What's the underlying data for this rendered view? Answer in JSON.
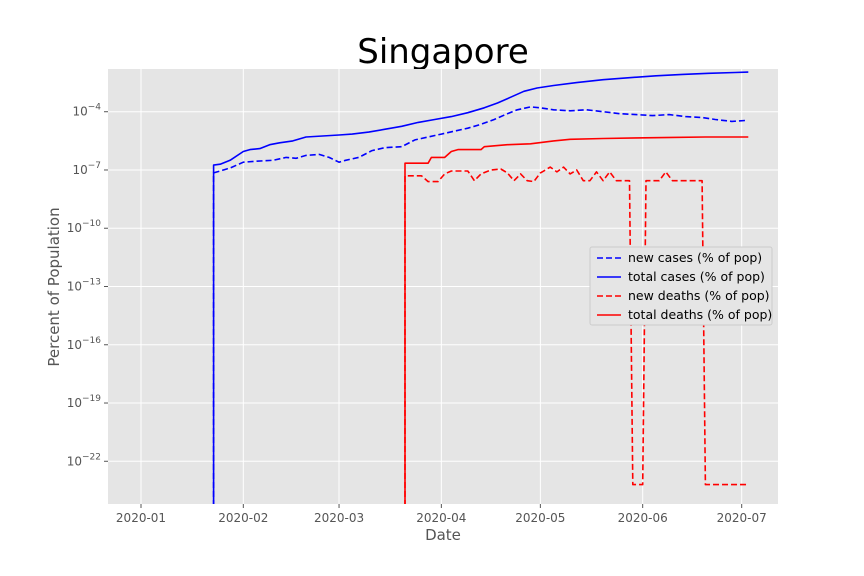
{
  "chart_data": {
    "type": "line",
    "title": "Singapore",
    "xlabel": "Date",
    "ylabel": "Percent of Population",
    "yscale": "log",
    "grid": true,
    "legend_position": "center-right",
    "colors": {
      "cases": "#0000ff",
      "deaths": "#ff0000",
      "background": "#e5e5e5",
      "grid": "#ffffff"
    },
    "x_ticks": [
      "2020-01",
      "2020-02",
      "2020-03",
      "2020-04",
      "2020-05",
      "2020-06",
      "2020-07"
    ],
    "y_ticks": [
      "10^-4",
      "10^-7",
      "10^-10",
      "10^-13",
      "10^-16",
      "10^-19",
      "10^-22"
    ],
    "xlim": [
      "2019-12-22",
      "2020-07-12"
    ],
    "ylim_exp": [
      -24.2,
      -1.8
    ],
    "series": [
      {
        "name": "new cases (% of pop)",
        "color": "#0000ff",
        "style": "dashed",
        "points": [
          [
            "2020-01-23",
            -30
          ],
          [
            "2020-01-23",
            -7.15
          ],
          [
            "2020-01-25",
            -7.05
          ],
          [
            "2020-01-28",
            -6.9
          ],
          [
            "2020-02-01",
            -6.6
          ],
          [
            "2020-02-05",
            -6.55
          ],
          [
            "2020-02-10",
            -6.5
          ],
          [
            "2020-02-14",
            -6.35
          ],
          [
            "2020-02-17",
            -6.4
          ],
          [
            "2020-02-20",
            -6.25
          ],
          [
            "2020-02-24",
            -6.2
          ],
          [
            "2020-02-27",
            -6.35
          ],
          [
            "2020-03-01",
            -6.6
          ],
          [
            "2020-03-03",
            -6.5
          ],
          [
            "2020-03-07",
            -6.35
          ],
          [
            "2020-03-11",
            -6.0
          ],
          [
            "2020-03-15",
            -5.85
          ],
          [
            "2020-03-20",
            -5.8
          ],
          [
            "2020-03-24",
            -5.45
          ],
          [
            "2020-03-28",
            -5.3
          ],
          [
            "2020-04-01",
            -5.15
          ],
          [
            "2020-04-05",
            -5.0
          ],
          [
            "2020-04-09",
            -4.85
          ],
          [
            "2020-04-13",
            -4.65
          ],
          [
            "2020-04-17",
            -4.4
          ],
          [
            "2020-04-21",
            -4.1
          ],
          [
            "2020-04-24",
            -3.9
          ],
          [
            "2020-04-28",
            -3.75
          ],
          [
            "2020-05-01",
            -3.8
          ],
          [
            "2020-05-05",
            -3.9
          ],
          [
            "2020-05-10",
            -3.95
          ],
          [
            "2020-05-15",
            -3.9
          ],
          [
            "2020-05-20",
            -4.0
          ],
          [
            "2020-05-25",
            -4.1
          ],
          [
            "2020-05-30",
            -4.15
          ],
          [
            "2020-06-04",
            -4.2
          ],
          [
            "2020-06-09",
            -4.15
          ],
          [
            "2020-06-14",
            -4.25
          ],
          [
            "2020-06-19",
            -4.3
          ],
          [
            "2020-06-23",
            -4.4
          ],
          [
            "2020-06-28",
            -4.5
          ],
          [
            "2020-07-02",
            -4.45
          ]
        ]
      },
      {
        "name": "total cases (% of pop)",
        "color": "#0000ff",
        "style": "solid",
        "points": [
          [
            "2020-01-23",
            -30
          ],
          [
            "2020-01-23",
            -6.75
          ],
          [
            "2020-01-25",
            -6.7
          ],
          [
            "2020-01-28",
            -6.5
          ],
          [
            "2020-02-01",
            -6.05
          ],
          [
            "2020-02-03",
            -5.95
          ],
          [
            "2020-02-06",
            -5.9
          ],
          [
            "2020-02-09",
            -5.7
          ],
          [
            "2020-02-12",
            -5.6
          ],
          [
            "2020-02-16",
            -5.5
          ],
          [
            "2020-02-20",
            -5.3
          ],
          [
            "2020-02-25",
            -5.25
          ],
          [
            "2020-03-01",
            -5.2
          ],
          [
            "2020-03-05",
            -5.15
          ],
          [
            "2020-03-10",
            -5.05
          ],
          [
            "2020-03-15",
            -4.9
          ],
          [
            "2020-03-20",
            -4.75
          ],
          [
            "2020-03-25",
            -4.55
          ],
          [
            "2020-03-30",
            -4.4
          ],
          [
            "2020-04-04",
            -4.25
          ],
          [
            "2020-04-09",
            -4.05
          ],
          [
            "2020-04-14",
            -3.8
          ],
          [
            "2020-04-18",
            -3.55
          ],
          [
            "2020-04-22",
            -3.25
          ],
          [
            "2020-04-26",
            -2.95
          ],
          [
            "2020-04-30",
            -2.78
          ],
          [
            "2020-05-05",
            -2.65
          ],
          [
            "2020-05-12",
            -2.5
          ],
          [
            "2020-05-20",
            -2.35
          ],
          [
            "2020-05-28",
            -2.25
          ],
          [
            "2020-06-05",
            -2.15
          ],
          [
            "2020-06-13",
            -2.08
          ],
          [
            "2020-06-21",
            -2.02
          ],
          [
            "2020-06-29",
            -1.98
          ],
          [
            "2020-07-03",
            -1.96
          ]
        ]
      },
      {
        "name": "new deaths (% of pop)",
        "color": "#ff0000",
        "style": "dashed",
        "points": [
          [
            "2020-03-21",
            -30
          ],
          [
            "2020-03-21",
            -7.3
          ],
          [
            "2020-03-26",
            -7.3
          ],
          [
            "2020-03-28",
            -7.6
          ],
          [
            "2020-03-31",
            -7.6
          ],
          [
            "2020-04-02",
            -7.2
          ],
          [
            "2020-04-04",
            -7.05
          ],
          [
            "2020-04-09",
            -7.05
          ],
          [
            "2020-04-11",
            -7.55
          ],
          [
            "2020-04-13",
            -7.2
          ],
          [
            "2020-04-16",
            -7.0
          ],
          [
            "2020-04-19",
            -6.95
          ],
          [
            "2020-04-21",
            -7.15
          ],
          [
            "2020-04-23",
            -7.55
          ],
          [
            "2020-04-25",
            -7.2
          ],
          [
            "2020-04-27",
            -7.55
          ],
          [
            "2020-04-29",
            -7.6
          ],
          [
            "2020-05-01",
            -7.15
          ],
          [
            "2020-05-04",
            -6.85
          ],
          [
            "2020-05-06",
            -7.1
          ],
          [
            "2020-05-08",
            -6.85
          ],
          [
            "2020-05-10",
            -7.2
          ],
          [
            "2020-05-12",
            -7.0
          ],
          [
            "2020-05-14",
            -7.55
          ],
          [
            "2020-05-16",
            -7.55
          ],
          [
            "2020-05-18",
            -7.1
          ],
          [
            "2020-05-20",
            -7.55
          ],
          [
            "2020-05-22",
            -7.1
          ],
          [
            "2020-05-24",
            -7.55
          ],
          [
            "2020-05-26",
            -7.55
          ],
          [
            "2020-05-28",
            -7.55
          ],
          [
            "2020-05-29",
            -23.2
          ],
          [
            "2020-06-01",
            -23.2
          ],
          [
            "2020-06-02",
            -7.55
          ],
          [
            "2020-06-06",
            -7.55
          ],
          [
            "2020-06-08",
            -7.1
          ],
          [
            "2020-06-10",
            -7.55
          ],
          [
            "2020-06-19",
            -7.55
          ],
          [
            "2020-06-20",
            -23.2
          ],
          [
            "2020-07-03",
            -23.2
          ]
        ]
      },
      {
        "name": "total deaths (% of pop)",
        "color": "#ff0000",
        "style": "solid",
        "points": [
          [
            "2020-03-21",
            -30
          ],
          [
            "2020-03-21",
            -6.65
          ],
          [
            "2020-03-28",
            -6.65
          ],
          [
            "2020-03-29",
            -6.35
          ],
          [
            "2020-04-02",
            -6.35
          ],
          [
            "2020-04-04",
            -6.05
          ],
          [
            "2020-04-06",
            -5.95
          ],
          [
            "2020-04-13",
            -5.95
          ],
          [
            "2020-04-14",
            -5.8
          ],
          [
            "2020-04-21",
            -5.7
          ],
          [
            "2020-04-28",
            -5.65
          ],
          [
            "2020-05-05",
            -5.5
          ],
          [
            "2020-05-10",
            -5.42
          ],
          [
            "2020-05-20",
            -5.38
          ],
          [
            "2020-05-30",
            -5.35
          ],
          [
            "2020-06-10",
            -5.32
          ],
          [
            "2020-06-20",
            -5.3
          ],
          [
            "2020-07-03",
            -5.3
          ]
        ]
      }
    ]
  }
}
